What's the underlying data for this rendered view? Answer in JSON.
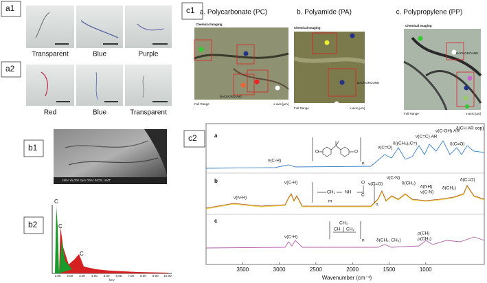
{
  "panels": {
    "a1": {
      "label": "a1",
      "captions": [
        "Transparent",
        "Blue",
        "Purple"
      ]
    },
    "a2": {
      "label": "a2",
      "captions": [
        "Red",
        "Blue",
        "Transparent"
      ]
    },
    "b1": {
      "label": "b1",
      "caption": "15kV  x5,000  2μm  0004  INOS, UMT"
    },
    "b2": {
      "label": "b2",
      "peaks": [
        "C",
        "C",
        "C"
      ],
      "xticks": [
        "1.00",
        "2.00",
        "3.00",
        "4.00",
        "5.00",
        "6.00",
        "7.00",
        "8.00",
        "9.00",
        "10.00"
      ],
      "xlabel": "keV"
    },
    "c1": {
      "label": "c1",
      "maps": [
        {
          "title": "a. Polycarbonate (PC)",
          "header": "Chemical Imaging",
          "marker": "BACKGROUND",
          "footer": "Full Range",
          "axis": "x-axis [µm]"
        },
        {
          "title": "b. Polyamide (PA)",
          "header": "Chemical Imaging",
          "marker": "BACKGROUND",
          "footer": "Full Range",
          "axis": "x-axis [µm]"
        },
        {
          "title": "c. Polypropylene (PP)",
          "header": "Chemical Imaging",
          "marker": "BACKGROUND",
          "footer": "Full Range",
          "axis": "x-axis [µm]"
        }
      ]
    },
    "c2": {
      "label": "c2",
      "xlim": [
        4000,
        200
      ],
      "xticks": [
        3500,
        3000,
        2500,
        2000,
        1500,
        1000
      ],
      "xlabel": "Wavenumber (cm⁻¹)",
      "traces": [
        {
          "label": "a",
          "annotations": [
            "ν(C-H)",
            "ν(C=O)",
            "δ((CH₃)₂C=)",
            "ν(C=C) AR",
            "ν(C-OH) AR",
            "δ(CH AR oop)",
            "δ(C=O)"
          ],
          "structure": [
            "O",
            "O",
            "n"
          ]
        },
        {
          "label": "b",
          "annotations": [
            "ν(N-H)",
            "ν(C-H)",
            "ν(C=O)",
            "ν(C-N)",
            "δ(CH₂)",
            "δ(NH)",
            "ν(C-N)",
            "δ(CH₂)",
            "δ(C=O)"
          ],
          "structure": [
            "CH₂",
            "m",
            "NH",
            "C",
            "O",
            "n"
          ]
        },
        {
          "label": "c",
          "annotations": [
            "ν(C-H)",
            "δ(CH₂, CH₃)",
            "ρ(CH)",
            "ρ(CH₃)"
          ],
          "structure": [
            "CH₃",
            "CH",
            "CH₂",
            "n"
          ]
        }
      ]
    }
  }
}
